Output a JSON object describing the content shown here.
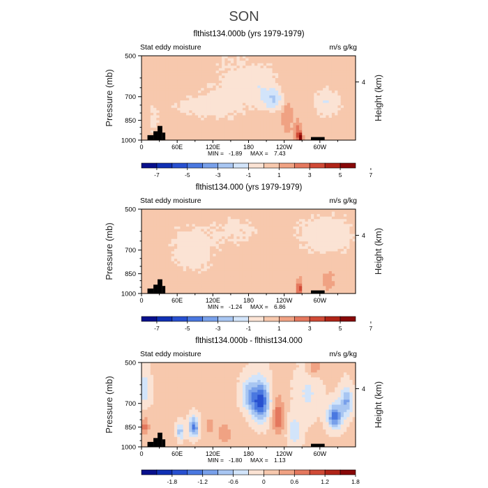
{
  "figure_title": "SON",
  "palette": {
    "neg": [
      "#08108c",
      "#1030b4",
      "#2850d0",
      "#4a78e0",
      "#78a0ea",
      "#a8c6f2",
      "#d2e4fa"
    ],
    "pos": [
      "#fbe3d4",
      "#f7c8ad",
      "#f0a283",
      "#e4785e",
      "#d04a36",
      "#b02418",
      "#880808"
    ]
  },
  "chart_data": [
    {
      "type": "contour",
      "title": "flthist134.000b (yrs 1979-1979)",
      "left_label": "Stat eddy moisture",
      "right_label": "m/s g/kg",
      "ylabel": "Pressure (mb)",
      "y2label": "Height (km)",
      "x_ticks": [
        "0",
        "60E",
        "120E",
        "180",
        "120W",
        "60W"
      ],
      "y_ticks": [
        "500",
        "700",
        "850",
        "1000"
      ],
      "y2_ticks": [
        "4"
      ],
      "stats": {
        "min_label": "MIN =",
        "min": "-1.89",
        "max_label": "MAX =",
        "max": "7.43"
      },
      "colorbar_levels": [
        -8,
        -7,
        -6,
        -5,
        -4,
        -3,
        -2,
        -1,
        0,
        1,
        2,
        3,
        4,
        5,
        6,
        7,
        8
      ],
      "colorbar_labels": [
        "-7",
        "-5",
        "-3",
        "-1",
        "1",
        "3",
        "5",
        "7"
      ],
      "base": 0.5,
      "features": [
        {
          "lon": 95,
          "p": 760,
          "wlon": 50,
          "wp": 80,
          "v": -0.8
        },
        {
          "lon": 150,
          "p": 650,
          "wlon": 40,
          "wp": 200,
          "v": -0.7
        },
        {
          "lon": 200,
          "p": 640,
          "wlon": 30,
          "wp": 100,
          "v": -1.2
        },
        {
          "lon": 222,
          "p": 720,
          "wlon": 18,
          "wp": 60,
          "v": -2.2
        },
        {
          "lon": 245,
          "p": 820,
          "wlon": 10,
          "wp": 120,
          "v": 1.4
        },
        {
          "lon": 263,
          "p": 950,
          "wlon": 5,
          "wp": 80,
          "v": 2.5
        },
        {
          "lon": 268,
          "p": 980,
          "wlon": 3,
          "wp": 40,
          "v": 5.0
        },
        {
          "lon": 312,
          "p": 740,
          "wlon": 22,
          "wp": 80,
          "v": -1.5
        },
        {
          "lon": 20,
          "p": 850,
          "wlon": 8,
          "wp": 100,
          "v": -0.8
        }
      ]
    },
    {
      "type": "contour",
      "title": "flthist134.000 (yrs 1979-1979)",
      "left_label": "Stat eddy moisture",
      "right_label": "m/s g/kg",
      "ylabel": "Pressure (mb)",
      "y2label": "Height (km)",
      "x_ticks": [
        "0",
        "60E",
        "120E",
        "180",
        "120W",
        "60W"
      ],
      "y_ticks": [
        "500",
        "700",
        "850",
        "1000"
      ],
      "y2_ticks": [
        "4"
      ],
      "stats": {
        "min_label": "MIN =",
        "min": "-1.24",
        "max_label": "MAX =",
        "max": "6.86"
      },
      "colorbar_levels": [
        -8,
        -7,
        -6,
        -5,
        -4,
        -3,
        -2,
        -1,
        0,
        1,
        2,
        3,
        4,
        5,
        6,
        7,
        8
      ],
      "colorbar_labels": [
        "-7",
        "-5",
        "-3",
        "-1",
        "1",
        "3",
        "5",
        "7"
      ],
      "base": 0.5,
      "features": [
        {
          "lon": 85,
          "p": 700,
          "wlon": 40,
          "wp": 150,
          "v": -1.0
        },
        {
          "lon": 160,
          "p": 600,
          "wlon": 40,
          "wp": 80,
          "v": -0.7
        },
        {
          "lon": 310,
          "p": 620,
          "wlon": 50,
          "wp": 100,
          "v": -1.2
        },
        {
          "lon": 265,
          "p": 960,
          "wlon": 5,
          "wp": 60,
          "v": 3.5
        },
        {
          "lon": 315,
          "p": 900,
          "wlon": 12,
          "wp": 80,
          "v": 1.0
        }
      ]
    },
    {
      "type": "contour",
      "title": "flthist134.000b - flthist134.000",
      "left_label": "Stat eddy moisture",
      "right_label": "m/s g/kg",
      "ylabel": "Pressure (mb)",
      "y2label": "Height (km)",
      "x_ticks": [
        "0",
        "60E",
        "120E",
        "180",
        "120W",
        "60W"
      ],
      "y_ticks": [
        "500",
        "700",
        "850",
        "1000"
      ],
      "y2_ticks": [
        "4"
      ],
      "stats": {
        "min_label": "MIN =",
        "min": "-1.80",
        "max_label": "MAX =",
        "max": "1.13"
      },
      "colorbar_levels": [
        -2.4,
        -2.1,
        -1.8,
        -1.5,
        -1.2,
        -0.9,
        -0.6,
        -0.3,
        0,
        0.3,
        0.6,
        0.9,
        1.2,
        1.5,
        1.8,
        2.1,
        2.4
      ],
      "colorbar_labels": [
        "-1.8",
        "-1.2",
        "-0.6",
        "0",
        "0.6",
        "1.2",
        "1.8"
      ],
      "base": 0.05,
      "features": [
        {
          "lon": 200,
          "p": 690,
          "wlon": 15,
          "wp": 110,
          "v": -1.7
        },
        {
          "lon": 180,
          "p": 650,
          "wlon": 12,
          "wp": 80,
          "v": -0.8
        },
        {
          "lon": 325,
          "p": 780,
          "wlon": 12,
          "wp": 80,
          "v": -1.4
        },
        {
          "lon": 345,
          "p": 690,
          "wlon": 10,
          "wp": 80,
          "v": -1.0
        },
        {
          "lon": 88,
          "p": 850,
          "wlon": 8,
          "wp": 70,
          "v": -1.3
        },
        {
          "lon": 65,
          "p": 880,
          "wlon": 5,
          "wp": 60,
          "v": -0.9
        },
        {
          "lon": 230,
          "p": 780,
          "wlon": 10,
          "wp": 120,
          "v": 0.8
        },
        {
          "lon": 140,
          "p": 900,
          "wlon": 15,
          "wp": 100,
          "v": 0.4
        },
        {
          "lon": 115,
          "p": 840,
          "wlon": 8,
          "wp": 60,
          "v": 0.4
        },
        {
          "lon": 258,
          "p": 880,
          "wlon": 12,
          "wp": 100,
          "v": -0.6
        },
        {
          "lon": 5,
          "p": 850,
          "wlon": 8,
          "wp": 60,
          "v": 0.7
        },
        {
          "lon": 5,
          "p": 620,
          "wlon": 10,
          "wp": 80,
          "v": -0.6
        },
        {
          "lon": 290,
          "p": 520,
          "wlon": 10,
          "wp": 40,
          "v": 0.6
        },
        {
          "lon": 280,
          "p": 650,
          "wlon": 20,
          "wp": 120,
          "v": -0.4
        }
      ]
    }
  ]
}
